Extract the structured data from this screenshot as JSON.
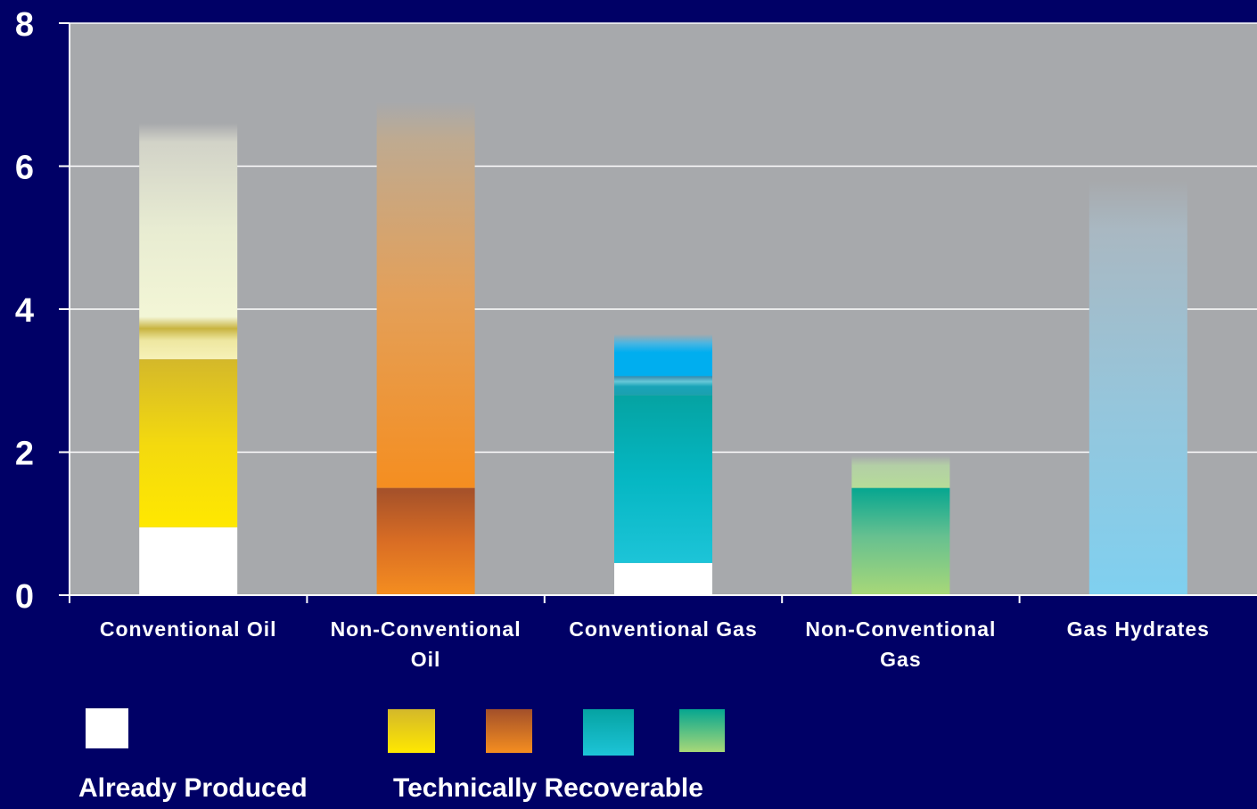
{
  "chart_data": {
    "type": "bar",
    "stacked": true,
    "categories": [
      "Conventional Oil",
      "Non-Conventional Oil",
      "Conventional Gas",
      "Non-Conventional Gas",
      "Gas Hydrates"
    ],
    "category_lines": [
      [
        "Conventional Oil"
      ],
      [
        "Non-Conventional",
        "Oil"
      ],
      [
        "Conventional Gas"
      ],
      [
        "Non-Conventional",
        "Gas"
      ],
      [
        "Gas Hydrates"
      ]
    ],
    "ylim": [
      0,
      8
    ],
    "yticks": [
      0,
      2,
      4,
      6,
      8
    ],
    "grid": true,
    "series": [
      {
        "name": "Already Produced",
        "values": [
          0.95,
          0,
          0.45,
          0,
          0
        ]
      },
      {
        "name": "Technically Recoverable",
        "values": [
          2.35,
          1.5,
          2.35,
          1.5,
          0
        ]
      },
      {
        "name": "",
        "values": [
          3.3,
          5.4,
          0.85,
          0.45,
          5.8
        ]
      }
    ],
    "colors": {
      "background": "#000066",
      "plot_area": "#a7a9ac",
      "produced": "#ffffff",
      "oil_recoverable": [
        "#d4b82a",
        "#ffe800"
      ],
      "nonconv_oil_recoverable": [
        "#a3502a",
        "#f58e20"
      ],
      "gas_recoverable": [
        "#05a3a2",
        "#1dc4d8"
      ],
      "nonconv_gas_recoverable": [
        "#05a690",
        "#a8d878"
      ],
      "oil_upper": "#f3f6d6",
      "nonconv_oil_upper": "#f58e20",
      "gas_upper": "#00aeef",
      "nonconv_gas_upper": "#b6dc98",
      "hydrates": "#7fd0f0"
    },
    "legend": {
      "labels": [
        "Already Produced",
        "Technically Recoverable"
      ],
      "placement": "bottom"
    }
  }
}
